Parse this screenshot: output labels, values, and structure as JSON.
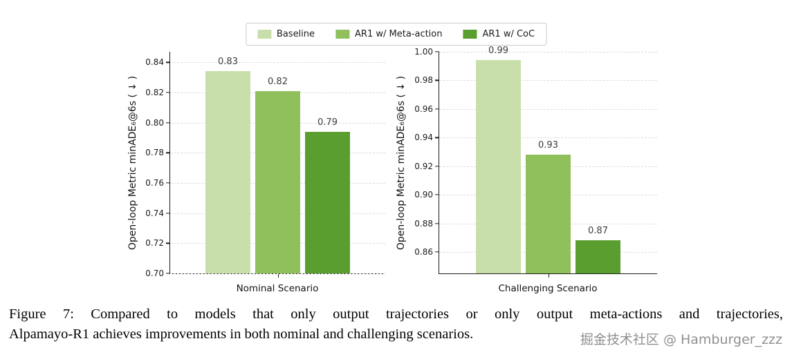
{
  "legend": {
    "items": [
      {
        "label": "Baseline",
        "color": "#c9dfab"
      },
      {
        "label": "AR1 w/ Meta-action",
        "color": "#90c05c"
      },
      {
        "label": "AR1 w/ CoC",
        "color": "#5a9e30"
      }
    ]
  },
  "chart_data": [
    {
      "type": "bar",
      "categories": [
        "Nominal Scenario"
      ],
      "series": [
        {
          "name": "Baseline",
          "values": [
            0.834
          ],
          "value_label": "0.83",
          "color": "#c9dfab"
        },
        {
          "name": "AR1 w/ Meta-action",
          "values": [
            0.821
          ],
          "value_label": "0.82",
          "color": "#90c05c"
        },
        {
          "name": "AR1 w/ CoC",
          "values": [
            0.794
          ],
          "value_label": "0.79",
          "color": "#5a9e30"
        }
      ],
      "xlabel": "Nominal Scenario",
      "ylabel": "Open-loop Metric minADE₆@6s ( ↓ )",
      "ylim": [
        0.7,
        0.847
      ],
      "yticks": [
        0.7,
        0.72,
        0.74,
        0.76,
        0.78,
        0.8,
        0.82,
        0.84
      ],
      "grid": true,
      "legend_position": "top-center-shared"
    },
    {
      "type": "bar",
      "categories": [
        "Challenging Scenario"
      ],
      "series": [
        {
          "name": "Baseline",
          "values": [
            0.994
          ],
          "value_label": "0.99",
          "color": "#c9dfab"
        },
        {
          "name": "AR1 w/ Meta-action",
          "values": [
            0.928
          ],
          "value_label": "0.93",
          "color": "#90c05c"
        },
        {
          "name": "AR1 w/ CoC",
          "values": [
            0.868
          ],
          "value_label": "0.87",
          "color": "#5a9e30"
        }
      ],
      "xlabel": "Challenging Scenario",
      "ylabel": "Open-loop Metric minADE₆@6s ( ↓ )",
      "ylim": [
        0.845,
        1.0
      ],
      "yticks": [
        0.86,
        0.88,
        0.9,
        0.92,
        0.94,
        0.96,
        0.98,
        1.0
      ],
      "grid": true,
      "legend_position": "top-center-shared"
    }
  ],
  "caption": {
    "line1": "Figure 7: Compared to models that only output trajectories or only output meta-actions and trajectories,",
    "line2": "Alpamayo-R1 achieves improvements in both nominal and challenging scenarios."
  },
  "watermark": "掘金技术社区 @ Hamburger_zzz"
}
